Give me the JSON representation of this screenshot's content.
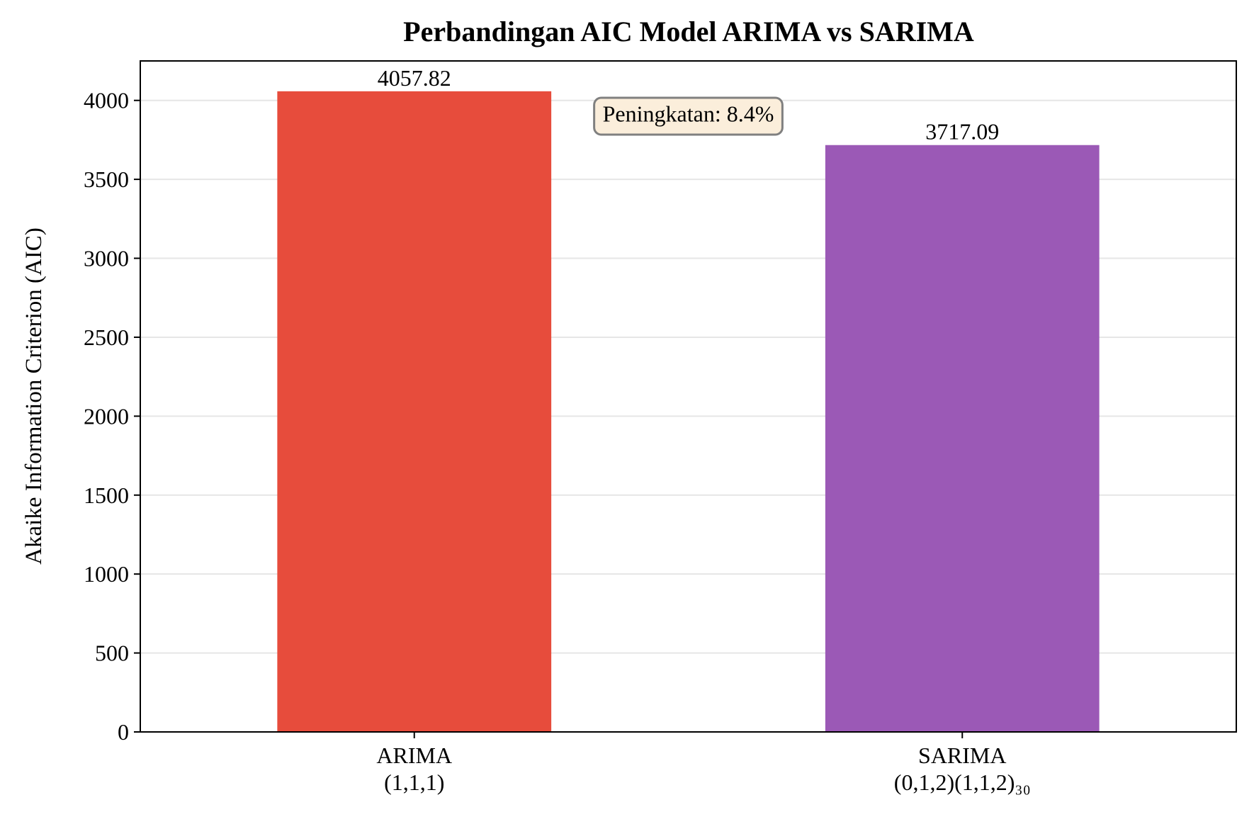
{
  "chart_data": {
    "type": "bar",
    "title": "Perbandingan AIC Model ARIMA vs SARIMA",
    "xlabel": "",
    "ylabel": "Akaike Information Criterion (AIC)",
    "categories": [
      [
        "ARIMA",
        "(1,1,1)"
      ],
      [
        "SARIMA",
        "(0,1,2)(1,1,2)₃₀"
      ]
    ],
    "values": [
      4057.82,
      3717.09
    ],
    "value_labels": [
      "4057.82",
      "3717.09"
    ],
    "bar_colors": [
      "#e74c3c",
      "#9b59b6"
    ],
    "ylim": [
      0,
      4250
    ],
    "yticks": [
      0,
      500,
      1000,
      1500,
      2000,
      2500,
      3000,
      3500,
      4000
    ],
    "grid": "y",
    "grid_color": "#e6e6e6",
    "annotation": {
      "text": "Peningkatan: 8.4%",
      "anchor": [
        0.5,
        3900
      ],
      "box_fill": "#fbeedb",
      "box_stroke": "#808080"
    }
  }
}
